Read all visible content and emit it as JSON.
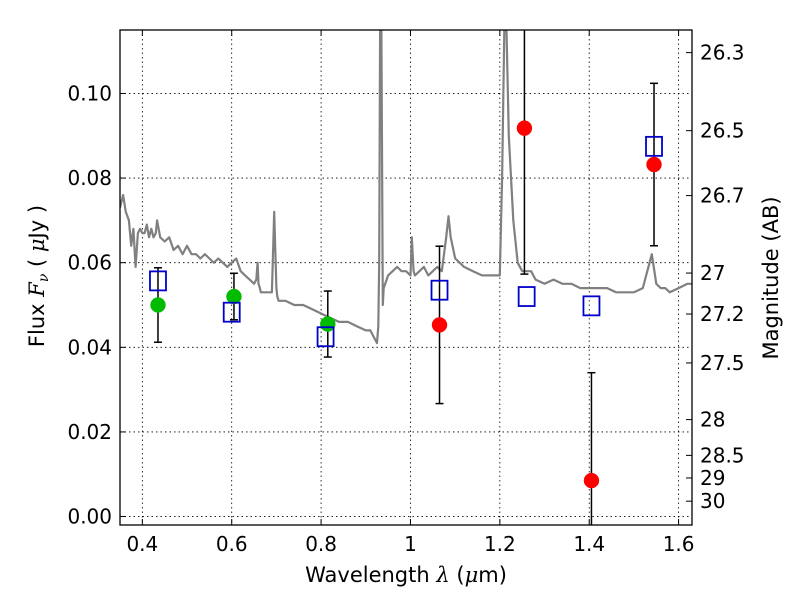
{
  "chart_data": {
    "type": "scatter",
    "xlabel": {
      "prefix": "Wavelength",
      "var": "λ",
      "unit_open": " (",
      "unit_mu": "μ",
      "unit_rest": "m)"
    },
    "ylabel": {
      "prefix": "Flux",
      "var": "F",
      "sub": "ν",
      "unit_open": " ( ",
      "unit_mu": "μ",
      "unit_rest": "Jy )"
    },
    "y2label": "Magnitude (AB)",
    "xlim": [
      0.35,
      1.63
    ],
    "ylim": [
      -0.002,
      0.115
    ],
    "grid": true,
    "x_ticks": [
      {
        "value": 0.4,
        "label": "0.4"
      },
      {
        "value": 0.6,
        "label": "0.6"
      },
      {
        "value": 0.8,
        "label": "0.8"
      },
      {
        "value": 1.0,
        "label": "1"
      },
      {
        "value": 1.2,
        "label": "1.2"
      },
      {
        "value": 1.4,
        "label": "1.4"
      },
      {
        "value": 1.6,
        "label": "1.6"
      }
    ],
    "y_ticks": [
      {
        "value": 0.0,
        "label": "0.00"
      },
      {
        "value": 0.02,
        "label": "0.02"
      },
      {
        "value": 0.04,
        "label": "0.04"
      },
      {
        "value": 0.06,
        "label": "0.06"
      },
      {
        "value": 0.08,
        "label": "0.08"
      },
      {
        "value": 0.1,
        "label": "0.10"
      }
    ],
    "y2_ticks": [
      {
        "mag": 26.3,
        "label": "26.3"
      },
      {
        "mag": 26.5,
        "label": "26.5"
      },
      {
        "mag": 26.7,
        "label": "26.7"
      },
      {
        "mag": 27.0,
        "label": "27"
      },
      {
        "mag": 27.2,
        "label": "27.2"
      },
      {
        "mag": 27.5,
        "label": "27.5"
      },
      {
        "mag": 28.0,
        "label": "28"
      },
      {
        "mag": 28.5,
        "label": "28.5"
      },
      {
        "mag": 29.0,
        "label": "29"
      },
      {
        "mag": 30.0,
        "label": "30"
      }
    ],
    "sed_model": {
      "color": "#808080",
      "x": [
        0.35,
        0.357,
        0.363,
        0.37,
        0.375,
        0.38,
        0.385,
        0.39,
        0.395,
        0.4,
        0.405,
        0.41,
        0.415,
        0.42,
        0.425,
        0.43,
        0.433,
        0.44,
        0.45,
        0.46,
        0.47,
        0.48,
        0.49,
        0.5,
        0.51,
        0.52,
        0.53,
        0.54,
        0.55,
        0.56,
        0.57,
        0.58,
        0.59,
        0.6,
        0.61,
        0.62,
        0.63,
        0.64,
        0.65,
        0.655,
        0.658,
        0.66,
        0.663,
        0.665,
        0.67,
        0.68,
        0.69,
        0.695,
        0.7,
        0.702,
        0.705,
        0.72,
        0.74,
        0.76,
        0.78,
        0.8,
        0.82,
        0.84,
        0.86,
        0.88,
        0.9,
        0.91,
        0.92,
        0.925,
        0.928,
        0.93,
        0.932,
        0.935,
        0.938,
        0.94,
        0.95,
        0.96,
        0.97,
        0.98,
        0.99,
        1.0,
        1.003,
        1.007,
        1.01,
        1.02,
        1.03,
        1.04,
        1.05,
        1.06,
        1.07,
        1.08,
        1.085,
        1.09,
        1.1,
        1.12,
        1.14,
        1.16,
        1.18,
        1.2,
        1.205,
        1.21,
        1.215,
        1.22,
        1.23,
        1.24,
        1.25,
        1.255,
        1.26,
        1.27,
        1.28,
        1.3,
        1.32,
        1.34,
        1.36,
        1.38,
        1.4,
        1.42,
        1.44,
        1.46,
        1.48,
        1.5,
        1.52,
        1.54,
        1.55,
        1.56,
        1.57,
        1.58,
        1.6,
        1.62,
        1.63
      ],
      "y": [
        0.073,
        0.076,
        0.072,
        0.07,
        0.064,
        0.068,
        0.059,
        0.067,
        0.068,
        0.067,
        0.067,
        0.069,
        0.066,
        0.068,
        0.066,
        0.067,
        0.07,
        0.066,
        0.065,
        0.066,
        0.063,
        0.064,
        0.062,
        0.064,
        0.062,
        0.062,
        0.061,
        0.062,
        0.061,
        0.06,
        0.061,
        0.06,
        0.059,
        0.06,
        0.061,
        0.058,
        0.057,
        0.056,
        0.055,
        0.056,
        0.06,
        0.055,
        0.054,
        0.053,
        0.053,
        0.053,
        0.053,
        0.072,
        0.054,
        0.052,
        0.051,
        0.051,
        0.05,
        0.05,
        0.049,
        0.048,
        0.047,
        0.046,
        0.046,
        0.045,
        0.044,
        0.044,
        0.042,
        0.041,
        0.045,
        0.06,
        0.115,
        0.115,
        0.05,
        0.054,
        0.057,
        0.058,
        0.059,
        0.058,
        0.058,
        0.057,
        0.066,
        0.058,
        0.057,
        0.058,
        0.059,
        0.057,
        0.058,
        0.059,
        0.058,
        0.066,
        0.071,
        0.066,
        0.061,
        0.059,
        0.058,
        0.057,
        0.057,
        0.057,
        0.08,
        0.115,
        0.115,
        0.09,
        0.07,
        0.06,
        0.058,
        0.058,
        0.058,
        0.058,
        0.056,
        0.055,
        0.056,
        0.055,
        0.055,
        0.054,
        0.054,
        0.054,
        0.054,
        0.053,
        0.053,
        0.053,
        0.054,
        0.062,
        0.055,
        0.054,
        0.054,
        0.053,
        0.054,
        0.055,
        0.055
      ]
    },
    "series": [
      {
        "marker": "filled-circle",
        "color": "#00bb00",
        "points": [
          {
            "x": 0.435,
            "y": 0.05,
            "err": 0.0088
          },
          {
            "x": 0.605,
            "y": 0.052,
            "err": 0.0055
          },
          {
            "x": 0.815,
            "y": 0.0455,
            "err": 0.0078
          }
        ]
      },
      {
        "marker": "filled-circle",
        "color": "#ff0000",
        "points": [
          {
            "x": 1.065,
            "y": 0.0453,
            "err": 0.0186
          },
          {
            "x": 1.255,
            "y": 0.0918,
            "err": 0.0345
          },
          {
            "x": 1.405,
            "y": 0.0085,
            "err": 0.0255
          },
          {
            "x": 1.545,
            "y": 0.0832,
            "err": 0.0192
          }
        ]
      },
      {
        "marker": "open-square",
        "color": "#0000cc",
        "points": [
          {
            "x": 0.435,
            "y": 0.0557
          },
          {
            "x": 0.6,
            "y": 0.0483
          },
          {
            "x": 0.81,
            "y": 0.0425
          },
          {
            "x": 1.065,
            "y": 0.0535
          },
          {
            "x": 1.26,
            "y": 0.052
          },
          {
            "x": 1.405,
            "y": 0.0498
          },
          {
            "x": 1.545,
            "y": 0.0875
          }
        ]
      }
    ]
  }
}
